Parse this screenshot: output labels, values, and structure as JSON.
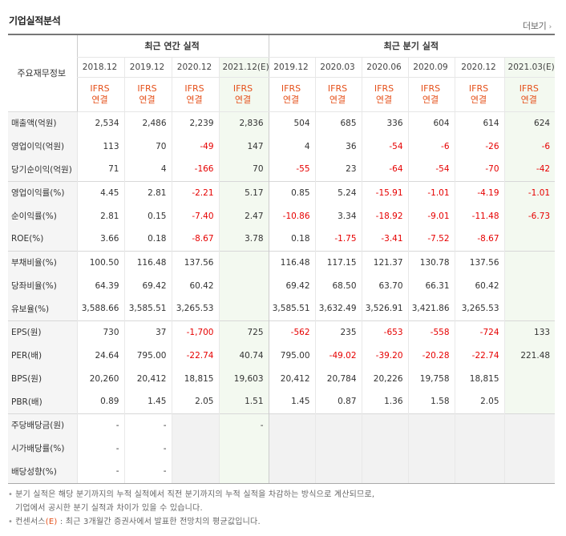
{
  "header": {
    "title": "기업실적분석",
    "more_label": "더보기"
  },
  "table": {
    "corner_label": "주요재무정보",
    "group_labels": {
      "annual": "최근 연간 실적",
      "quarterly": "최근 분기 실적"
    },
    "columns": [
      "2018.12",
      "2019.12",
      "2020.12",
      "2021.12(E)",
      "2019.12",
      "2020.03",
      "2020.06",
      "2020.09",
      "2020.12",
      "2021.03(E)"
    ],
    "standard_top": "IFRS",
    "standard_bottom": "연결",
    "rows": [
      {
        "label": "매출액(억원)",
        "values": [
          "2,534",
          "2,486",
          "2,239",
          "2,836",
          "504",
          "685",
          "336",
          "604",
          "614",
          "624"
        ]
      },
      {
        "label": "영업이익(억원)",
        "values": [
          "113",
          "70",
          "-49",
          "147",
          "4",
          "36",
          "-54",
          "-6",
          "-26",
          "-6"
        ]
      },
      {
        "label": "당기순이익(억원)",
        "values": [
          "71",
          "4",
          "-166",
          "70",
          "-55",
          "23",
          "-64",
          "-54",
          "-70",
          "-42"
        ]
      },
      {
        "label": "영업이익률(%)",
        "values": [
          "4.45",
          "2.81",
          "-2.21",
          "5.17",
          "0.85",
          "5.24",
          "-15.91",
          "-1.01",
          "-4.19",
          "-1.01"
        ]
      },
      {
        "label": "순이익률(%)",
        "values": [
          "2.81",
          "0.15",
          "-7.40",
          "2.47",
          "-10.86",
          "3.34",
          "-18.92",
          "-9.01",
          "-11.48",
          "-6.73"
        ]
      },
      {
        "label": "ROE(%)",
        "values": [
          "3.66",
          "0.18",
          "-8.67",
          "3.78",
          "0.18",
          "-1.75",
          "-3.41",
          "-7.52",
          "-8.67",
          ""
        ]
      },
      {
        "label": "부채비율(%)",
        "values": [
          "100.50",
          "116.48",
          "137.56",
          "",
          "116.48",
          "117.15",
          "121.37",
          "130.78",
          "137.56",
          ""
        ]
      },
      {
        "label": "당좌비율(%)",
        "values": [
          "64.39",
          "69.42",
          "60.42",
          "",
          "69.42",
          "68.50",
          "63.70",
          "66.31",
          "60.42",
          ""
        ]
      },
      {
        "label": "유보율(%)",
        "values": [
          "3,588.66",
          "3,585.51",
          "3,265.53",
          "",
          "3,585.51",
          "3,632.49",
          "3,526.91",
          "3,421.86",
          "3,265.53",
          ""
        ]
      },
      {
        "label": "EPS(원)",
        "values": [
          "730",
          "37",
          "-1,700",
          "725",
          "-562",
          "235",
          "-653",
          "-558",
          "-724",
          "133"
        ]
      },
      {
        "label": "PER(배)",
        "values": [
          "24.64",
          "795.00",
          "-22.74",
          "40.74",
          "795.00",
          "-49.02",
          "-39.20",
          "-20.28",
          "-22.74",
          "221.48"
        ]
      },
      {
        "label": "BPS(원)",
        "values": [
          "20,260",
          "20,412",
          "18,815",
          "19,603",
          "20,412",
          "20,784",
          "20,226",
          "19,758",
          "18,815",
          ""
        ]
      },
      {
        "label": "PBR(배)",
        "values": [
          "0.89",
          "1.45",
          "2.05",
          "1.51",
          "1.45",
          "0.87",
          "1.36",
          "1.58",
          "2.05",
          ""
        ]
      },
      {
        "label": "주당배당금(원)",
        "values": [
          "-",
          "-",
          null,
          "-",
          null,
          null,
          null,
          null,
          null,
          null
        ]
      },
      {
        "label": "시가배당률(%)",
        "values": [
          "-",
          "-",
          null,
          "",
          null,
          null,
          null,
          null,
          null,
          null
        ]
      },
      {
        "label": "배당성향(%)",
        "values": [
          "-",
          "-",
          null,
          "",
          null,
          null,
          null,
          null,
          null,
          null
        ]
      }
    ]
  },
  "notes": {
    "line1": "분기 실적은 해당 분기까지의 누적 실적에서 직전 분기까지의 누적 실적을 차감하는 방식으로 계산되므로,",
    "line2": "기업에서 공시한 분기 실적과 차이가 있을 수 있습니다.",
    "consensus_prefix": "컨센서스",
    "consensus_mark": "(E)",
    "consensus_text": ": 최근 3개월간 증권사에서 발표한 전망치의 평균값입니다."
  }
}
